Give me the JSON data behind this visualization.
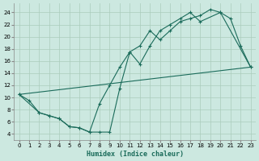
{
  "xlabel": "Humidex (Indice chaleur)",
  "background_color": "#cce8e0",
  "grid_color": "#aaccbb",
  "line_color": "#1a6b5a",
  "xlim": [
    -0.5,
    23.5
  ],
  "ylim": [
    3.0,
    25.5
  ],
  "xticks": [
    0,
    1,
    2,
    3,
    4,
    5,
    6,
    7,
    8,
    9,
    10,
    11,
    12,
    13,
    14,
    15,
    16,
    17,
    18,
    19,
    20,
    21,
    22,
    23
  ],
  "yticks": [
    4,
    6,
    8,
    10,
    12,
    14,
    16,
    18,
    20,
    22,
    24
  ],
  "curve1_x": [
    0,
    1,
    2,
    3,
    4,
    5,
    6,
    7,
    8,
    9,
    10,
    11,
    12,
    13,
    14,
    15,
    16,
    17,
    18,
    19,
    20,
    23
  ],
  "curve1_y": [
    10.5,
    9.5,
    7.5,
    7.0,
    6.5,
    5.2,
    5.0,
    4.3,
    9.0,
    12.0,
    15.0,
    17.5,
    18.5,
    21.0,
    19.5,
    21.0,
    22.5,
    23.0,
    23.5,
    24.5,
    24.0,
    15.0
  ],
  "curve2_x": [
    0,
    2,
    3,
    4,
    5,
    6,
    7,
    8,
    9,
    10,
    11,
    12,
    13,
    14,
    15,
    16,
    17,
    18,
    20,
    21,
    22,
    23
  ],
  "curve2_y": [
    10.5,
    7.5,
    7.0,
    6.5,
    5.2,
    5.0,
    4.3,
    4.3,
    4.3,
    11.5,
    17.5,
    15.5,
    18.5,
    21.0,
    22.0,
    23.0,
    24.0,
    22.5,
    24.0,
    23.0,
    18.5,
    15.0
  ],
  "curve3_x": [
    0,
    23
  ],
  "curve3_y": [
    10.5,
    15.0
  ]
}
